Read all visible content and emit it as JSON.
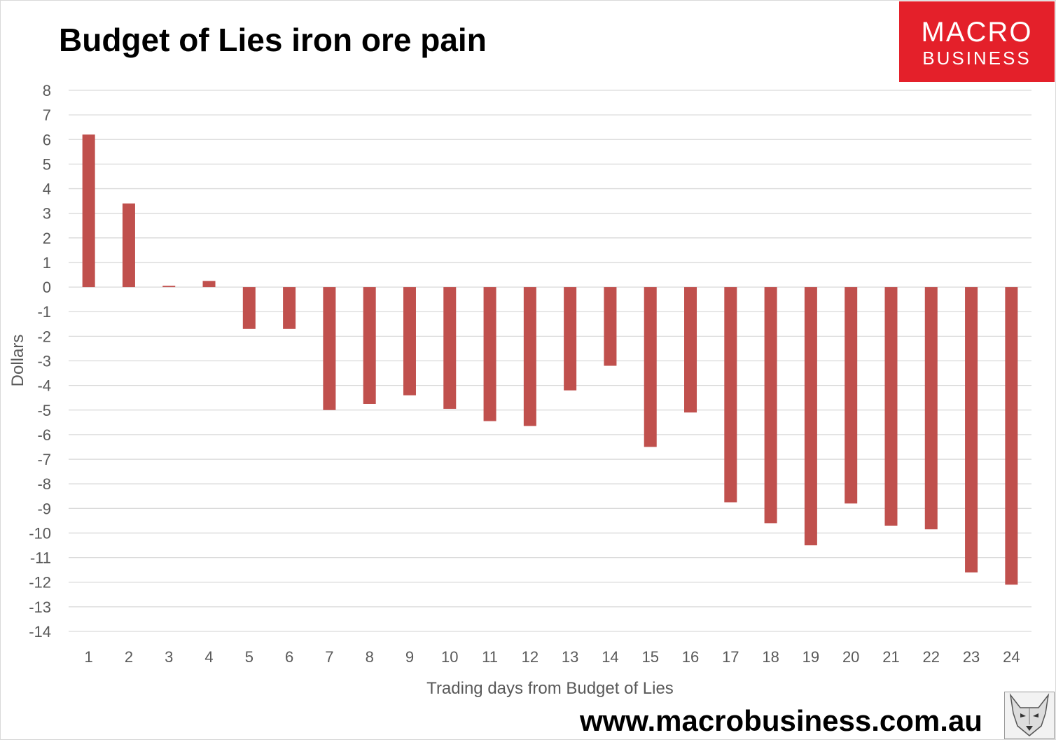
{
  "chart_data": {
    "type": "bar",
    "title": "Budget of Lies iron ore pain",
    "xlabel": "Trading days from Budget of Lies",
    "ylabel": "Dollars",
    "ylim": [
      -14,
      8
    ],
    "yticks": [
      "8",
      "7",
      "6",
      "5",
      "4",
      "3",
      "2",
      "1",
      "0",
      "-1",
      "-2",
      "-3",
      "-4",
      "-5",
      "-6",
      "-7",
      "-8",
      "-9",
      "-10",
      "-11",
      "-12",
      "-13",
      "-14"
    ],
    "categories": [
      "1",
      "2",
      "3",
      "4",
      "5",
      "6",
      "7",
      "8",
      "9",
      "10",
      "11",
      "12",
      "13",
      "14",
      "15",
      "16",
      "17",
      "18",
      "19",
      "20",
      "21",
      "22",
      "23",
      "24"
    ],
    "values": [
      6.2,
      3.4,
      0.05,
      0.25,
      -1.7,
      -1.7,
      -5.0,
      -4.75,
      -4.4,
      -4.95,
      -5.45,
      -5.65,
      -4.2,
      -3.2,
      -6.5,
      -5.1,
      -8.75,
      -9.6,
      -10.5,
      -8.8,
      -9.7,
      -9.85,
      -11.6,
      -12.1
    ],
    "bar_color": "#c0504d",
    "grid": true
  },
  "brand": {
    "logo_line1": "MACRO",
    "logo_line2": "BUSINESS",
    "logo_color": "#e4202a",
    "url": "www.macrobusiness.com.au",
    "mascot_icon": "wolf-icon"
  }
}
